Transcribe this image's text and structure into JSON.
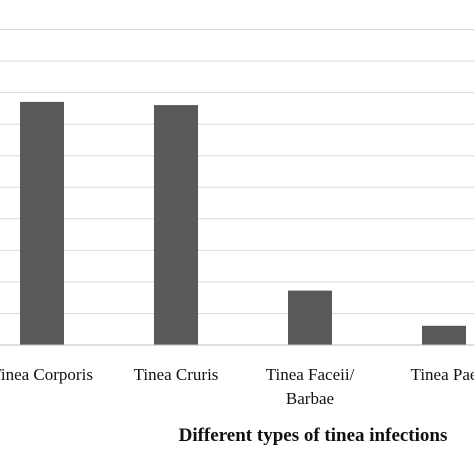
{
  "chart_data": {
    "type": "bar",
    "categories": [
      [
        "Tinea Corporis"
      ],
      [
        "Tinea Cruris"
      ],
      [
        "Tinea Faceii/",
        "Barbae"
      ],
      [
        "Tinea Pae"
      ]
    ],
    "values": [
      7.6,
      7.5,
      1.7,
      0.6
    ],
    "xlabel": "Different types of tinea infections",
    "ylabel": "",
    "ylim": [
      0,
      10.85
    ],
    "grid": true,
    "legend": "none",
    "colors": {
      "bar": "#595959",
      "grid": "#d9d9d9",
      "axis": "#bfbfbf",
      "text": "#111111"
    }
  }
}
